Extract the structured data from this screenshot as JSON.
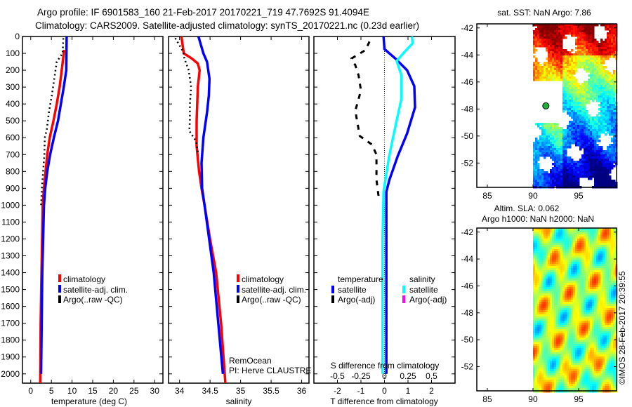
{
  "header": {
    "line1": "Argo profile: IF 6901583_160 21-Feb-2017 20170221_719 47.7692S 91.4094E",
    "line2": "Climatology: CARS2009. Satellite-adjusted climatology: synTS_20170221.nc (0.23d earlier)"
  },
  "colors": {
    "climatology": "#ff0000",
    "satellite": "#0000ff",
    "argo": "#000000",
    "sal_satellite": "#00ffff",
    "sal_argo": "#ff00ff"
  },
  "chart_data": [
    {
      "type": "line",
      "id": "temperature",
      "xlabel": "temperature (deg C)",
      "ylabel": "",
      "xlim": [
        -2,
        32
      ],
      "ylim": [
        2055,
        0
      ],
      "xticks": [
        0,
        5,
        10,
        15,
        20,
        25,
        30
      ],
      "yticks": [
        0,
        100,
        200,
        300,
        400,
        500,
        600,
        700,
        800,
        900,
        1000,
        1100,
        1200,
        1300,
        1400,
        1500,
        1600,
        1700,
        1800,
        1900,
        2000
      ],
      "legend": [
        "climatology",
        "satellite-adj. clim.",
        "Argo(..raw -QC)"
      ],
      "series": [
        {
          "name": "climatology",
          "color": "#ff0000",
          "style": "solid",
          "points": [
            [
              80,
              8.1
            ],
            [
              200,
              7.5
            ],
            [
              300,
              7.0
            ],
            [
              400,
              6.3
            ],
            [
              500,
              5.5
            ],
            [
              600,
              4.6
            ],
            [
              700,
              4.0
            ],
            [
              800,
              3.6
            ],
            [
              900,
              3.2
            ],
            [
              1000,
              2.9
            ],
            [
              1400,
              2.6
            ],
            [
              1700,
              2.4
            ],
            [
              2055,
              2.3
            ]
          ]
        },
        {
          "name": "satellite-adj. clim.",
          "color": "#0000ff",
          "style": "solid",
          "points": [
            [
              0,
              8.7
            ],
            [
              200,
              8.6
            ],
            [
              300,
              8.0
            ],
            [
              400,
              7.3
            ],
            [
              500,
              6.6
            ],
            [
              600,
              5.6
            ],
            [
              700,
              4.7
            ],
            [
              800,
              4.0
            ],
            [
              900,
              3.5
            ],
            [
              1000,
              3.2
            ],
            [
              1400,
              2.8
            ],
            [
              2000,
              2.5
            ]
          ]
        },
        {
          "name": "Argo(..raw -QC)",
          "color": "#000000",
          "style": "dotted",
          "points": [
            [
              10,
              7.9
            ],
            [
              100,
              7.7
            ],
            [
              150,
              6.3
            ],
            [
              250,
              5.7
            ],
            [
              350,
              5.1
            ],
            [
              450,
              4.4
            ],
            [
              550,
              3.9
            ],
            [
              600,
              3.4
            ],
            [
              700,
              3.3
            ],
            [
              800,
              3.0
            ],
            [
              900,
              2.7
            ],
            [
              1000,
              2.5
            ]
          ]
        }
      ]
    },
    {
      "type": "line",
      "id": "salinity",
      "xlabel": "salinity",
      "xlim": [
        33.82,
        36.12
      ],
      "ylim": [
        2055,
        0
      ],
      "xticks": [
        34,
        34.5,
        35,
        35.5,
        36
      ],
      "legend": [
        "climatology",
        "satellite-adj. clim.",
        "Argo(..raw -QC)"
      ],
      "annotation": [
        "RemOcean",
        "PI: Herve CLAUSTRE"
      ],
      "series": [
        {
          "name": "climatology",
          "color": "#ff0000",
          "style": "solid",
          "points": [
            [
              0,
              34.03
            ],
            [
              100,
              34.07
            ],
            [
              130,
              34.2
            ],
            [
              160,
              34.3
            ],
            [
              200,
              34.33
            ],
            [
              300,
              34.3
            ],
            [
              500,
              34.28
            ],
            [
              650,
              34.28
            ],
            [
              800,
              34.32
            ],
            [
              900,
              34.36
            ],
            [
              1000,
              34.41
            ],
            [
              1200,
              34.5
            ],
            [
              1400,
              34.6
            ],
            [
              1700,
              34.68
            ],
            [
              2000,
              34.74
            ],
            [
              2055,
              34.75
            ]
          ]
        },
        {
          "name": "satellite-adj. clim.",
          "color": "#0000ff",
          "style": "solid",
          "points": [
            [
              0,
              34.31
            ],
            [
              100,
              34.39
            ],
            [
              150,
              34.45
            ],
            [
              250,
              34.49
            ],
            [
              350,
              34.48
            ],
            [
              450,
              34.45
            ],
            [
              600,
              34.39
            ],
            [
              750,
              34.36
            ],
            [
              900,
              34.37
            ],
            [
              1000,
              34.41
            ],
            [
              1400,
              34.56
            ],
            [
              2000,
              34.71
            ]
          ]
        },
        {
          "name": "Argo(..raw -QC)",
          "color": "#000000",
          "style": "dotted",
          "points": [
            [
              10,
              33.93
            ],
            [
              90,
              34.06
            ],
            [
              130,
              34.08
            ],
            [
              200,
              34.15
            ],
            [
              300,
              34.19
            ],
            [
              400,
              34.17
            ],
            [
              500,
              34.17
            ],
            [
              560,
              34.16
            ],
            [
              620,
              34.27
            ],
            [
              700,
              34.31
            ]
          ]
        }
      ]
    },
    {
      "type": "line",
      "id": "difference",
      "xlabel": "T difference from climatology",
      "x2label": "S difference from climatology",
      "xlim": [
        -3,
        3
      ],
      "x2lim": [
        -0.75,
        0.75
      ],
      "ylim": [
        2055,
        0
      ],
      "xticks": [
        -2,
        -1,
        0,
        1,
        2
      ],
      "x2ticks": [
        -0.5,
        -0.25,
        0,
        0.25,
        0.5
      ],
      "x2ticklabels": [
        "-0.5",
        "-0.25",
        "0",
        "0.25",
        "0.5"
      ],
      "legend": {
        "temperature_title": "temperature",
        "salinity_title": "salinity",
        "items": [
          "satellite",
          "Argo(-adj)",
          "satellite",
          "Argo(-adj)"
        ]
      },
      "series": [
        {
          "name": "T satellite",
          "axis": "T",
          "color": "#0000ff",
          "style": "solid",
          "points": [
            [
              0,
              -0.04
            ],
            [
              75,
              0
            ],
            [
              130,
              0.46
            ],
            [
              200,
              0.96
            ],
            [
              295,
              1.27
            ],
            [
              420,
              1.3
            ],
            [
              575,
              0.96
            ],
            [
              710,
              0.56
            ],
            [
              850,
              0.21
            ],
            [
              920,
              0.08
            ],
            [
              2000,
              0.08
            ]
          ]
        },
        {
          "name": "S satellite",
          "axis": "S",
          "color": "#00ffff",
          "style": "solid",
          "points": [
            [
              0,
              0.29
            ],
            [
              40,
              0.3
            ],
            [
              100,
              0.2
            ],
            [
              145,
              0.13
            ],
            [
              230,
              0.18
            ],
            [
              370,
              0.18
            ],
            [
              575,
              0.1
            ],
            [
              710,
              0.05
            ],
            [
              850,
              0.01
            ],
            [
              920,
              -0.01
            ],
            [
              1200,
              -0.02
            ],
            [
              2000,
              -0.02
            ]
          ]
        },
        {
          "name": "T Argo(-adj)",
          "axis": "T",
          "color": "#000000",
          "style": "dashed",
          "points": [
            [
              30,
              -0.64
            ],
            [
              80,
              -0.8
            ],
            [
              130,
              -1.4
            ],
            [
              170,
              -1.24
            ],
            [
              230,
              -1.1
            ],
            [
              320,
              -1.0
            ],
            [
              440,
              -1.24
            ],
            [
              590,
              -1.05
            ],
            [
              640,
              -0.54
            ],
            [
              700,
              -0.34
            ],
            [
              850,
              -0.34
            ],
            [
              960,
              -0.24
            ]
          ]
        }
      ]
    },
    {
      "type": "heatmap",
      "id": "sst-map",
      "title": "sat. SST: NaN Argo: 7.86",
      "xlim": [
        83.85,
        99.15
      ],
      "ylim": [
        -53.8,
        -41.7
      ],
      "xticks": [
        85,
        90,
        95
      ],
      "yticks": [
        -42,
        -44,
        -46,
        -48,
        -50,
        -52
      ],
      "data_lon_range": [
        90,
        99
      ],
      "argo_position": {
        "lon": 91.4094,
        "lat": -47.7692,
        "value": 7.86
      }
    },
    {
      "type": "heatmap",
      "id": "sla-map",
      "title": "Altim. SLA: 0.062",
      "subtitle": "Argo h1000: NaN h2000: NaN",
      "xlim": [
        83.85,
        99.15
      ],
      "ylim": [
        -53.8,
        -41.7
      ],
      "xticks": [
        85,
        90,
        95
      ],
      "yticks": [
        -42,
        -44,
        -46,
        -48,
        -50,
        -52
      ],
      "data_lon_range": [
        90,
        99
      ]
    }
  ],
  "footer": {
    "credit": "©IMOS 28-Feb-2017 20:39:55"
  }
}
